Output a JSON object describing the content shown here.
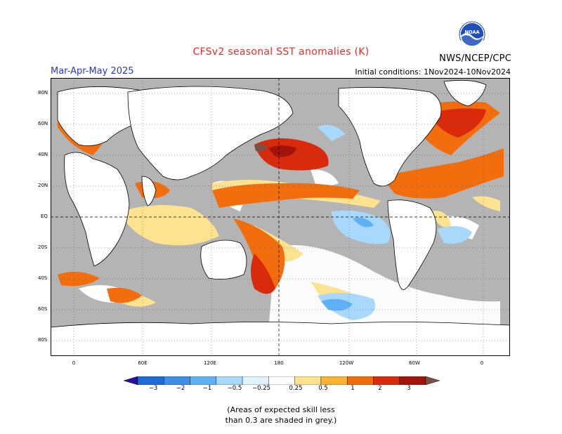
{
  "title": "CFSv2 seasonal SST anomalies (K)",
  "season": "Mar-Apr-May 2025",
  "initial_conditions": "Initial conditions: 1Nov2024-10Nov2024",
  "agency": "NWS/NCEP/CPC",
  "logo_text": "NOAA",
  "latitude_labels": [
    "80N",
    "60N",
    "40N",
    "20N",
    "EQ",
    "20S",
    "40S",
    "60S",
    "80S"
  ],
  "longitude_labels": [
    "0",
    "60E",
    "120E",
    "180",
    "120W",
    "60W",
    "0"
  ],
  "colorbar": {
    "ticks": [
      "−3",
      "−2",
      "−1",
      "−0.5",
      "−0.25",
      "0.25",
      "0.5",
      "1",
      "2",
      "3"
    ],
    "colors": [
      "#2a0f9e",
      "#1f6ad8",
      "#3d8ee8",
      "#5fb0f4",
      "#a8d8fb",
      "#dff2fd",
      "#ffffff",
      "#fde38f",
      "#f9b431",
      "#f26d0c",
      "#d92b0c",
      "#a4130b",
      "#795245"
    ]
  },
  "footnote": {
    "line1": "(Areas of expected skill less",
    "line2": "than 0.3 are shaded in grey.)"
  },
  "colors": {
    "ocean_no_skill": "#b4b4b4",
    "land": "#ffffff",
    "title": "#e0302a",
    "season": "#2f36c8"
  }
}
